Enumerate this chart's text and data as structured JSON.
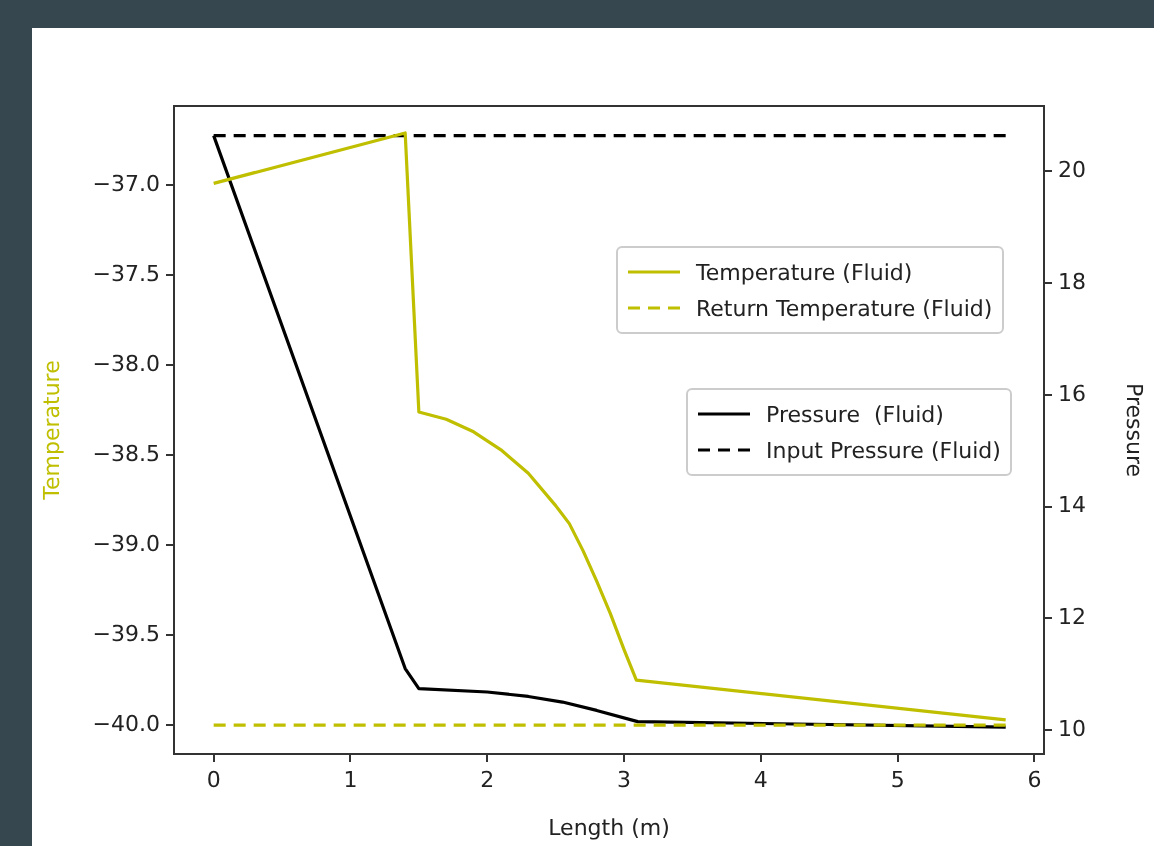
{
  "chart_data": {
    "type": "line",
    "xlabel": "Length (m)",
    "ylabel": "Temperature",
    "y2label": "Pressure",
    "xlim": [
      -0.29,
      6.07
    ],
    "xticks": [
      0,
      1,
      2,
      3,
      4,
      5,
      6
    ],
    "ylim": [
      -40.16,
      -36.56
    ],
    "yticks": [
      {
        "value": -37,
        "label": "−37.0"
      },
      {
        "value": -37.5,
        "label": "−37.5"
      },
      {
        "value": -38,
        "label": "−38.0"
      },
      {
        "value": -38.5,
        "label": "−38.5"
      },
      {
        "value": -39,
        "label": "−39.0"
      },
      {
        "value": -39.5,
        "label": "−39.5"
      },
      {
        "value": -40,
        "label": "−40.0"
      }
    ],
    "y2lim": [
      9.57,
      21.17
    ],
    "y2ticks": [
      10,
      12,
      14,
      16,
      18,
      20
    ],
    "grid": false,
    "legend": "right",
    "marker": "none",
    "series": [
      {
        "name": "Temperature (Fluid)",
        "color": "#bfbf00",
        "x": [
          0,
          1.4,
          1.5,
          1.7,
          1.9,
          2.1,
          2.3,
          2.5,
          2.6,
          2.7,
          2.8,
          2.9,
          3.0,
          3.09,
          5.79
        ],
        "values": [
          -36.99,
          -36.71,
          -38.26,
          -38.3,
          -38.37,
          -38.47,
          -38.6,
          -38.78,
          -38.88,
          -39.03,
          -39.2,
          -39.38,
          -39.58,
          -39.75,
          -39.97
        ]
      },
      {
        "name": "Return Temperature (Fluid)",
        "color": "#bfbf00",
        "line_style": "dashed",
        "x": [
          0,
          5.79
        ],
        "values": [
          -40.0,
          -40.0
        ]
      },
      {
        "name": "Pressure  (Fluid)",
        "color": "#000000",
        "axis": "y2",
        "x": [
          0,
          1.4,
          1.5,
          2.0,
          2.3,
          2.55,
          2.8,
          3.1,
          5.79
        ],
        "values": [
          20.64,
          11.1,
          10.74,
          10.68,
          10.6,
          10.5,
          10.35,
          10.15,
          10.05
        ]
      },
      {
        "name": "Input Pressure (Fluid)",
        "color": "#000000",
        "axis": "y2",
        "line_style": "dashed",
        "x": [
          0,
          5.79
        ],
        "values": [
          20.64,
          20.64
        ]
      }
    ]
  }
}
